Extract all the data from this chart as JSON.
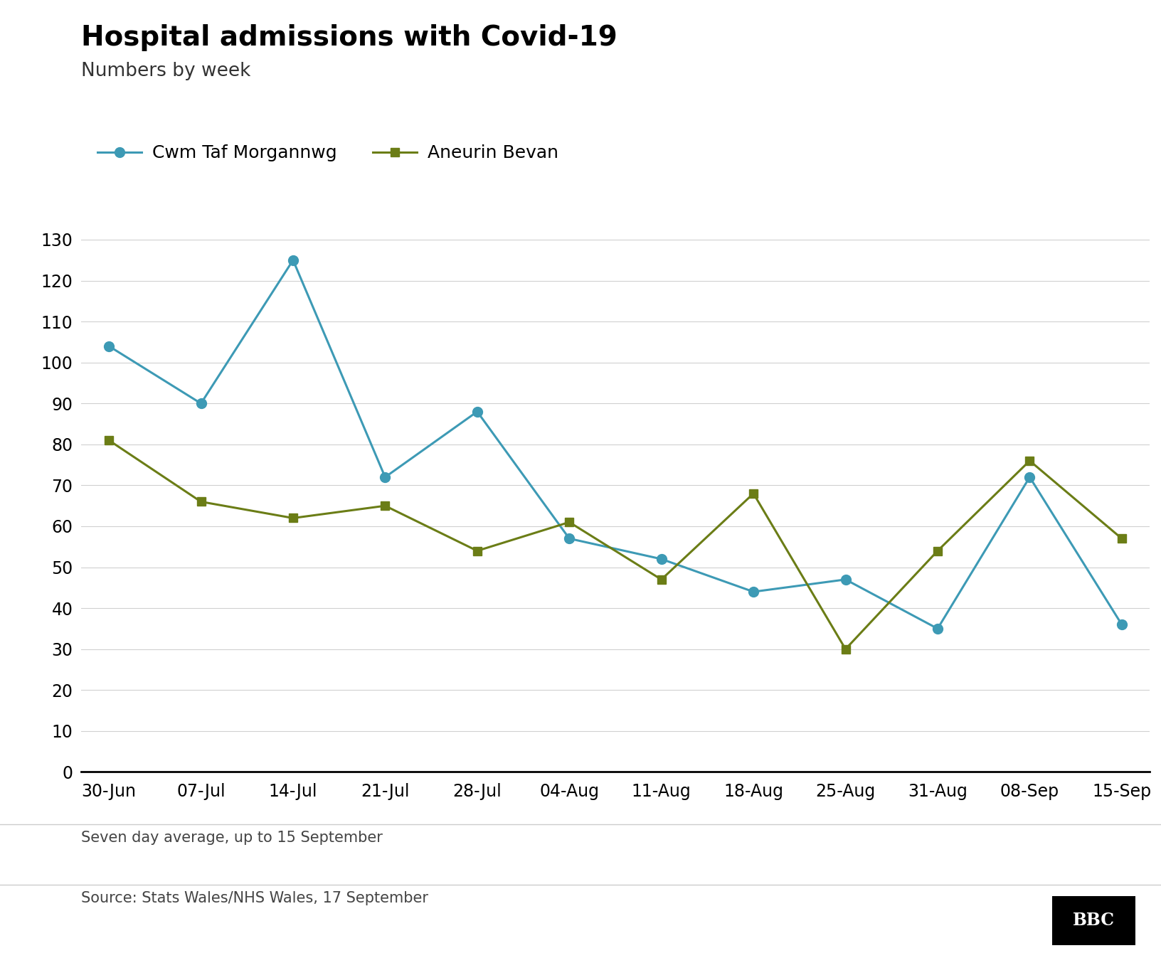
{
  "title": "Hospital admissions with Covid-19",
  "subtitle": "Numbers by week",
  "x_labels": [
    "30-Jun",
    "07-Jul",
    "14-Jul",
    "21-Jul",
    "28-Jul",
    "04-Aug",
    "11-Aug",
    "18-Aug",
    "25-Aug",
    "31-Aug",
    "08-Sep",
    "15-Sep"
  ],
  "cwm_taf": [
    104,
    90,
    125,
    72,
    88,
    57,
    52,
    44,
    47,
    35,
    72,
    36
  ],
  "aneurin_bevan": [
    81,
    66,
    62,
    65,
    54,
    61,
    47,
    68,
    30,
    54,
    76,
    57
  ],
  "cwm_color": "#3d9ab5",
  "aneurin_color": "#6b7d16",
  "ylim": [
    0,
    135
  ],
  "yticks": [
    0,
    10,
    20,
    30,
    40,
    50,
    60,
    70,
    80,
    90,
    100,
    110,
    120,
    130
  ],
  "footnote": "Seven day average, up to 15 September",
  "source": "Source: Stats Wales/NHS Wales, 17 September",
  "bg_color": "#ffffff",
  "line_width": 2.2,
  "marker_size": 10
}
